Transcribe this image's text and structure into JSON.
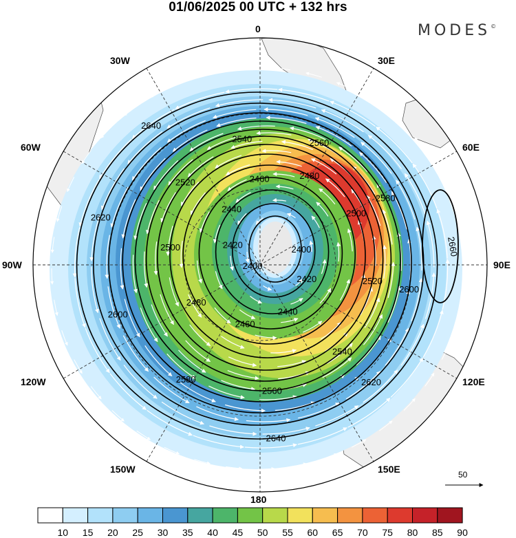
{
  "title": "01/06/2025  00 UTC  + 132 hrs",
  "brand": "MODES",
  "brand_mark": "©",
  "lon_labels": {
    "n": "0",
    "ne": "30E",
    "e1": "60E",
    "e2": "90E",
    "e3": "120E",
    "e4": "150E",
    "s": "180",
    "w4": "150W",
    "w3": "120W",
    "w2": "90W",
    "w1": "60W",
    "nw": "30W"
  },
  "reference_vector": "50",
  "colorbar": {
    "labels": [
      "10",
      "15",
      "20",
      "25",
      "30",
      "35",
      "40",
      "45",
      "50",
      "55",
      "60",
      "65",
      "70",
      "75",
      "80",
      "85",
      "90"
    ],
    "colors": [
      "#ffffff",
      "#d4efff",
      "#b2e2fb",
      "#8ecdf1",
      "#6ab5e6",
      "#4a96d1",
      "#46a6a0",
      "#4db56a",
      "#73c447",
      "#b8d94a",
      "#f2e15c",
      "#f6bd4f",
      "#f39340",
      "#ec6235",
      "#dd3a2e",
      "#c52229",
      "#a0151f"
    ]
  },
  "contours": [
    {
      "label": "2400",
      "rx": 38,
      "ry": 48
    },
    {
      "label": "2420",
      "rx": 60,
      "ry": 68
    },
    {
      "label": "2440",
      "rx": 82,
      "ry": 90
    },
    {
      "label": "2460",
      "rx": 104,
      "ry": 110
    },
    {
      "label": "2480",
      "rx": 125,
      "ry": 130
    },
    {
      "label": "2500",
      "rx": 142,
      "ry": 148
    },
    {
      "label": "2520",
      "rx": 158,
      "ry": 164
    },
    {
      "label": "2540",
      "rx": 172,
      "ry": 178
    },
    {
      "label": "2560",
      "rx": 186,
      "ry": 190
    },
    {
      "label": "2580",
      "rx": 202,
      "ry": 204
    },
    {
      "label": "2600",
      "rx": 220,
      "ry": 218
    },
    {
      "label": "2620",
      "rx": 240,
      "ry": 234
    },
    {
      "label": "2640",
      "rx": 262,
      "ry": 252
    }
  ],
  "isolated_contour": {
    "label": "2660"
  }
}
